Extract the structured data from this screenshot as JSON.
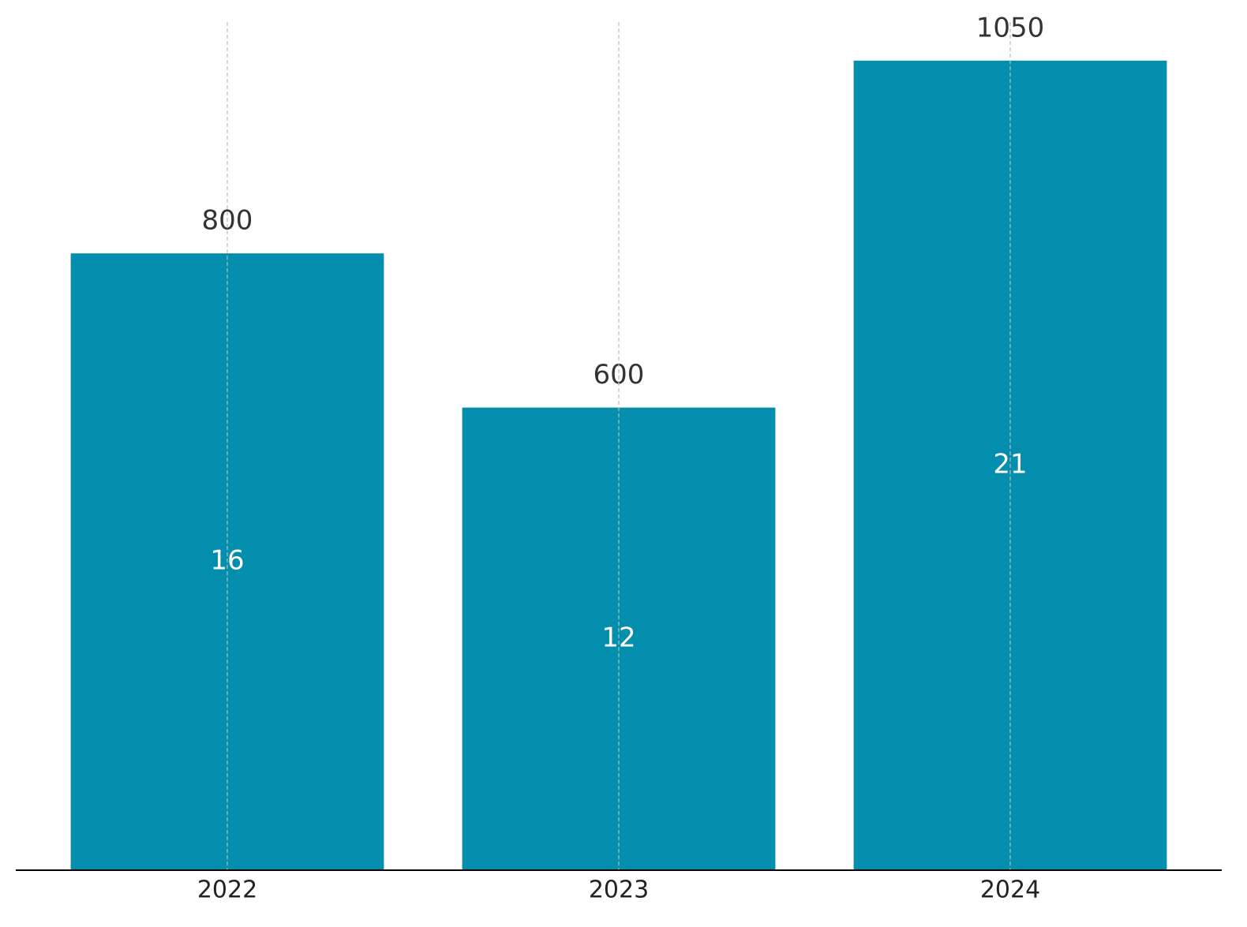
{
  "chart_data": {
    "type": "bar",
    "categories": [
      "2022",
      "2023",
      "2024"
    ],
    "values": [
      800,
      600,
      1050
    ],
    "inner_labels": [
      16,
      12,
      21
    ],
    "color": "#028eac",
    "ylim": [
      0,
      1100
    ],
    "grid": "x"
  }
}
